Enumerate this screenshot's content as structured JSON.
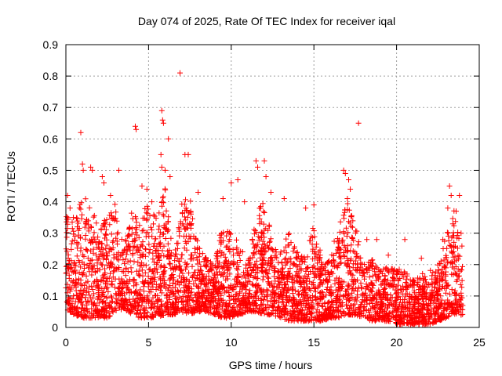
{
  "chart_data": {
    "type": "scatter",
    "title": "Day 074 of 2025, Rate Of TEC Index for receiver iqal",
    "xlabel": "GPS time / hours",
    "ylabel": "ROTI / TECUs",
    "xlim": [
      0,
      25
    ],
    "ylim": [
      0,
      0.9
    ],
    "xticks": [
      0,
      5,
      10,
      15,
      20,
      25
    ],
    "yticks": [
      0,
      0.1,
      0.2,
      0.3,
      0.4,
      0.5,
      0.6,
      0.7,
      0.8,
      0.9
    ],
    "grid": true,
    "marker": "+",
    "color": "#ff0000",
    "data_span_hours": [
      0,
      24
    ],
    "series": [
      {
        "name": "ROTI",
        "points": [
          [
            0.02,
            0.25
          ],
          [
            0.1,
            0.42
          ],
          [
            0.25,
            0.38
          ],
          [
            0.45,
            0.35
          ],
          [
            0.9,
            0.62
          ],
          [
            1.0,
            0.52
          ],
          [
            1.05,
            0.5
          ],
          [
            1.5,
            0.51
          ],
          [
            1.6,
            0.5
          ],
          [
            2.2,
            0.48
          ],
          [
            2.3,
            0.46
          ],
          [
            2.7,
            0.42
          ],
          [
            3.2,
            0.5
          ],
          [
            4.2,
            0.64
          ],
          [
            4.25,
            0.63
          ],
          [
            4.6,
            0.45
          ],
          [
            4.9,
            0.44
          ],
          [
            5.2,
            0.4
          ],
          [
            5.8,
            0.69
          ],
          [
            5.85,
            0.66
          ],
          [
            5.9,
            0.65
          ],
          [
            5.75,
            0.55
          ],
          [
            5.8,
            0.51
          ],
          [
            6.0,
            0.5
          ],
          [
            6.2,
            0.6
          ],
          [
            6.3,
            0.48
          ],
          [
            6.9,
            0.81
          ],
          [
            7.2,
            0.55
          ],
          [
            7.4,
            0.55
          ],
          [
            8.0,
            0.43
          ],
          [
            9.5,
            0.41
          ],
          [
            10.0,
            0.46
          ],
          [
            10.4,
            0.47
          ],
          [
            10.8,
            0.4
          ],
          [
            11.5,
            0.53
          ],
          [
            11.6,
            0.51
          ],
          [
            12.0,
            0.53
          ],
          [
            12.1,
            0.48
          ],
          [
            12.4,
            0.43
          ],
          [
            13.2,
            0.41
          ],
          [
            14.5,
            0.38
          ],
          [
            15.0,
            0.39
          ],
          [
            16.8,
            0.5
          ],
          [
            16.9,
            0.49
          ],
          [
            17.1,
            0.47
          ],
          [
            17.2,
            0.44
          ],
          [
            17.7,
            0.65
          ],
          [
            18.2,
            0.28
          ],
          [
            18.8,
            0.28
          ],
          [
            19.5,
            0.23
          ],
          [
            20.5,
            0.28
          ],
          [
            21.5,
            0.22
          ],
          [
            22.8,
            0.28
          ],
          [
            23.1,
            0.38
          ],
          [
            23.2,
            0.45
          ],
          [
            23.3,
            0.42
          ],
          [
            23.6,
            0.37
          ],
          [
            23.8,
            0.42
          ],
          [
            23.9,
            0.3
          ]
        ]
      }
    ],
    "density_profile_description": "dense cloud of points 0.02-0.3 across 0-24 h",
    "envelope_hours": [
      0,
      0.5,
      1,
      1.5,
      2,
      2.5,
      3,
      3.5,
      4,
      4.5,
      5,
      5.5,
      6,
      6.5,
      7,
      7.5,
      8,
      8.5,
      9,
      9.5,
      10,
      10.5,
      11,
      11.5,
      12,
      12.5,
      13,
      13.5,
      14,
      14.5,
      15,
      15.5,
      16,
      16.5,
      17,
      17.5,
      18,
      18.5,
      19,
      19.5,
      20,
      20.5,
      21,
      21.5,
      22,
      22.5,
      23,
      23.5,
      24
    ],
    "envelope_upper": [
      0.38,
      0.33,
      0.42,
      0.4,
      0.3,
      0.36,
      0.4,
      0.25,
      0.38,
      0.33,
      0.42,
      0.35,
      0.45,
      0.22,
      0.4,
      0.42,
      0.27,
      0.22,
      0.2,
      0.35,
      0.3,
      0.27,
      0.2,
      0.35,
      0.42,
      0.26,
      0.25,
      0.3,
      0.24,
      0.23,
      0.33,
      0.22,
      0.24,
      0.32,
      0.42,
      0.33,
      0.2,
      0.22,
      0.18,
      0.2,
      0.19,
      0.18,
      0.16,
      0.17,
      0.18,
      0.2,
      0.3,
      0.38,
      0.25
    ],
    "envelope_lower": [
      0.06,
      0.04,
      0.03,
      0.03,
      0.03,
      0.03,
      0.05,
      0.06,
      0.04,
      0.03,
      0.03,
      0.03,
      0.04,
      0.04,
      0.05,
      0.04,
      0.05,
      0.05,
      0.04,
      0.03,
      0.03,
      0.04,
      0.05,
      0.05,
      0.04,
      0.04,
      0.03,
      0.02,
      0.02,
      0.02,
      0.02,
      0.02,
      0.03,
      0.03,
      0.04,
      0.04,
      0.03,
      0.02,
      0.02,
      0.02,
      0.01,
      0.01,
      0.01,
      0.01,
      0.01,
      0.02,
      0.03,
      0.04,
      0.04
    ]
  }
}
